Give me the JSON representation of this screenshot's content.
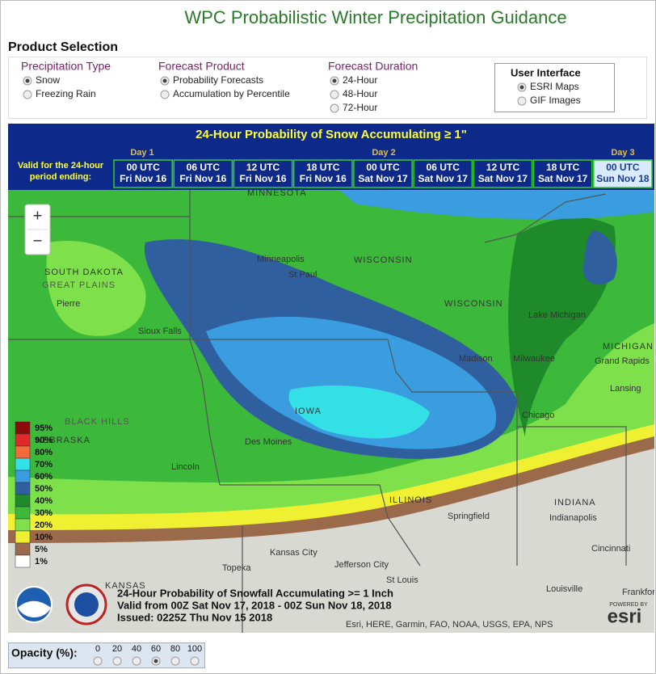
{
  "header": {
    "title": "WPC Probabilistic Winter Precipitation Guidance"
  },
  "product_selection": {
    "title": "Product Selection",
    "groups": [
      {
        "title": "Precipitation Type",
        "options": [
          "Snow",
          "Freezing Rain"
        ],
        "selected": 0
      },
      {
        "title": "Forecast Product",
        "options": [
          "Probability Forecasts",
          "Accumulation by Percentile"
        ],
        "selected": 0
      },
      {
        "title": "Forecast Duration",
        "options": [
          "24-Hour",
          "48-Hour",
          "72-Hour"
        ],
        "selected": 0
      }
    ]
  },
  "user_interface": {
    "title": "User Interface",
    "options": [
      "ESRI Maps",
      "GIF Images"
    ],
    "selected": 0
  },
  "forecast": {
    "title": "24-Hour Probability of Snow Accumulating ≥ 1\"",
    "valid_label": [
      "Valid for the 24-hour",
      "period ending:"
    ],
    "days": [
      "Day 1",
      "Day 2",
      "Day 3"
    ],
    "times": [
      [
        "00 UTC",
        "Fri Nov 16"
      ],
      [
        "06 UTC",
        "Fri Nov 16"
      ],
      [
        "12 UTC",
        "Fri Nov 16"
      ],
      [
        "18 UTC",
        "Fri Nov 16"
      ],
      [
        "00 UTC",
        "Sat Nov 17"
      ],
      [
        "06 UTC",
        "Sat Nov 17"
      ],
      [
        "12 UTC",
        "Sat Nov 17"
      ],
      [
        "18 UTC",
        "Sat Nov 17"
      ],
      [
        "00 UTC",
        "Sun Nov 18"
      ]
    ],
    "selected_time": 8
  },
  "map": {
    "zoom_in": "+",
    "zoom_out": "−",
    "labels": [
      "MINNESOTA",
      "SOUTH DAKOTA",
      "GREAT PLAINS",
      "Pierre",
      "Minneapolis",
      "St Paul",
      "WISCONSIN",
      "WISCONSIN",
      "Sioux Falls",
      "Madison",
      "Milwaukee",
      "Lake Michigan",
      "MICHIGAN",
      "Grand Rapids",
      "Lansing",
      "IOWA",
      "Des Moines",
      "Chicago",
      "Lincoln",
      "ILLINOIS",
      "Springfield",
      "INDIANA",
      "Indianapolis",
      "Kansas City",
      "Topeka",
      "Jefferson City",
      "St Louis",
      "Louisville",
      "Cincinnati",
      "KANSAS",
      "Frankfort",
      "BLACK HILLS",
      "NEBRASKA"
    ],
    "legend": [
      {
        "label": "95%",
        "color": "#8b0a0a"
      },
      {
        "label": "90%",
        "color": "#e02a2a"
      },
      {
        "label": "80%",
        "color": "#f46a3a"
      },
      {
        "label": "70%",
        "color": "#33e0e6"
      },
      {
        "label": "60%",
        "color": "#3a9de0"
      },
      {
        "label": "50%",
        "color": "#2f5f9e"
      },
      {
        "label": "40%",
        "color": "#1f8a2a"
      },
      {
        "label": "30%",
        "color": "#3cb83a"
      },
      {
        "label": "20%",
        "color": "#7ee04a"
      },
      {
        "label": "10%",
        "color": "#f0f032"
      },
      {
        "label": "5%",
        "color": "#9a6a4a"
      },
      {
        "label": "1%",
        "color": "#ffffff"
      }
    ],
    "caption": [
      "24-Hour Probability of Snowfall Accumulating >= 1 Inch",
      "Valid from 00Z Sat Nov 17, 2018 - 00Z Sun Nov 18, 2018",
      "Issued: 0225Z Thu Nov 15 2018"
    ],
    "attribution": "Esri, HERE, Garmin, FAO, NOAA, USGS, EPA, NPS",
    "powered_by": "POWERED BY",
    "esri": "esri"
  },
  "opacity": {
    "label": "Opacity (%):",
    "options": [
      "0",
      "20",
      "40",
      "60",
      "80",
      "100"
    ],
    "selected": 3
  }
}
